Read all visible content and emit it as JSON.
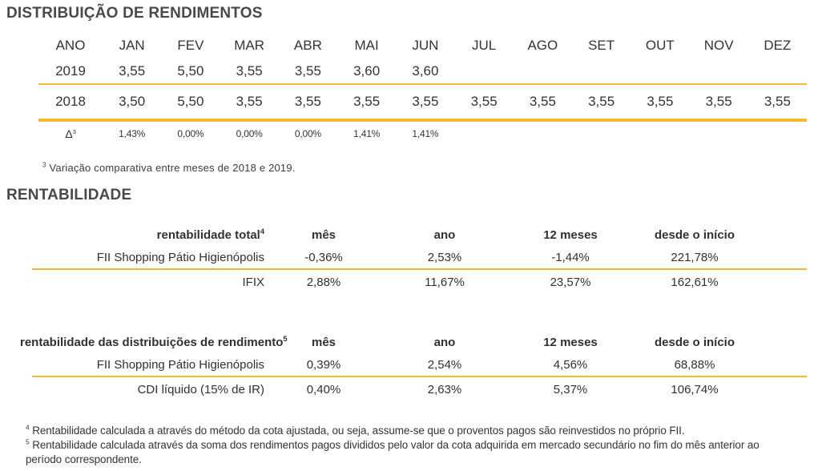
{
  "colors": {
    "accent_gold": "#F3BA2F",
    "heading_gray": "#47494b",
    "text_dark": "#323436"
  },
  "section1": {
    "title": "DISTRIBUIÇÃO DE RENDIMENTOS",
    "table": {
      "year_header": "ANO",
      "months": [
        "JAN",
        "FEV",
        "MAR",
        "ABR",
        "MAI",
        "JUN",
        "JUL",
        "AGO",
        "SET",
        "OUT",
        "NOV",
        "DEZ"
      ],
      "row2019": {
        "year": "2019",
        "values": [
          "3,55",
          "5,50",
          "3,55",
          "3,55",
          "3,60",
          "3,60"
        ]
      },
      "row2018": {
        "year": "2018",
        "values": [
          "3,50",
          "5,50",
          "3,55",
          "3,55",
          "3,55",
          "3,55",
          "3,55",
          "3,55",
          "3,55",
          "3,55",
          "3,55",
          "3,55"
        ]
      },
      "delta_row": {
        "label": "Δ",
        "label_sup": "3",
        "values": [
          "1,43%",
          "0,00%",
          "0,00%",
          "0,00%",
          "1,41%",
          "1,41%"
        ]
      }
    },
    "footnote3": {
      "marker": "3",
      "text": " Variação comparativa entre meses de 2018 e 2019."
    }
  },
  "section2": {
    "title": "RENTABILIDADE",
    "table_total": {
      "header_label": "rentabilidade total",
      "header_sup": "4",
      "columns": [
        "mês",
        "ano",
        "12 meses",
        "desde o início"
      ],
      "rows": [
        {
          "label": "FII Shopping Pátio Higienópolis",
          "values": [
            "-0,36%",
            "2,53%",
            "-1,44%",
            "221,78%"
          ]
        },
        {
          "label": "IFIX",
          "values": [
            "2,88%",
            "11,67%",
            "23,57%",
            "162,61%"
          ]
        }
      ]
    },
    "table_dist": {
      "header_label": "rentabilidade das distribuições de rendimento",
      "header_sup": "5",
      "columns": [
        "mês",
        "ano",
        "12 meses",
        "desde o início"
      ],
      "rows": [
        {
          "label": "FII Shopping Pátio Higienópolis",
          "values": [
            "0,39%",
            "2,54%",
            "4,56%",
            "68,88%"
          ]
        },
        {
          "label": "CDI líquido (15% de IR)",
          "values": [
            "0,40%",
            "2,63%",
            "5,37%",
            "106,74%"
          ]
        }
      ]
    },
    "footnote4": {
      "marker": "4",
      "text": " Rentabilidade calculada a através do método da cota ajustada, ou seja, assume-se que o proventos pagos são reinvestidos no próprio FII."
    },
    "footnote5": {
      "marker": "5",
      "text": " Rentabilidade calculada através da soma dos rendimentos pagos divididos pelo valor da cota adquirida em mercado secundário no fim do mês anterior ao período correspondente."
    }
  }
}
